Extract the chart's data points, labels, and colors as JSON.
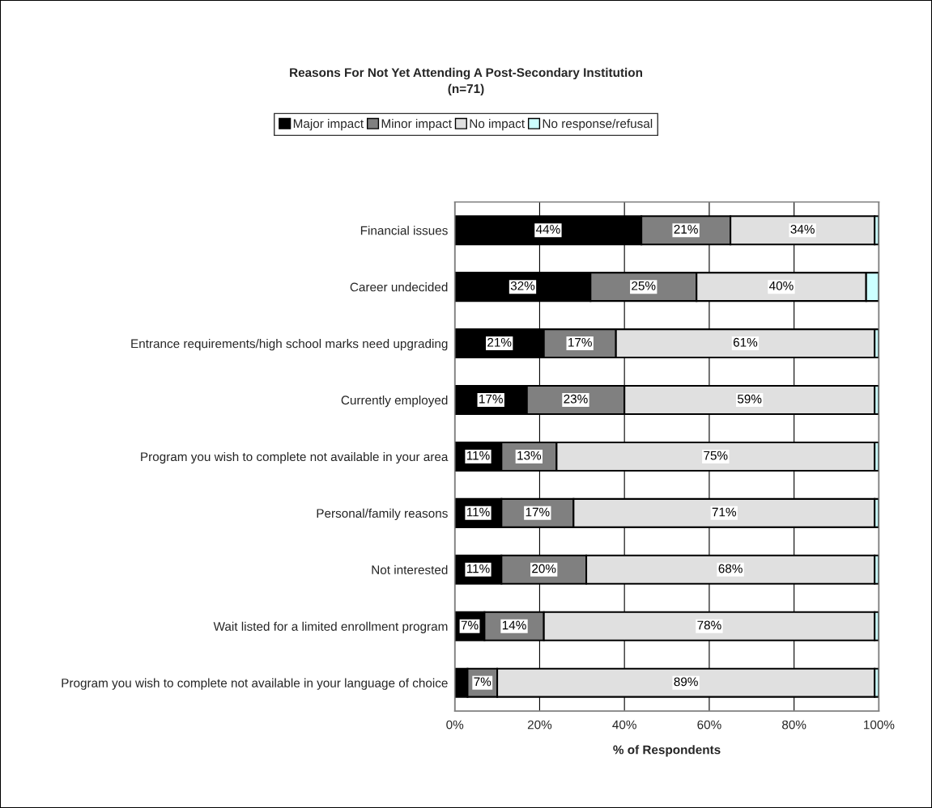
{
  "chart_data": {
    "type": "bar",
    "orientation": "horizontal",
    "stacked": true,
    "title": "Reasons For Not Yet Attending A Post-Secondary Institution",
    "subtitle": "(n=71)",
    "xlabel": "% of Respondents",
    "categories": [
      "Financial issues",
      "Career undecided",
      "Entrance requirements/high school marks need upgrading",
      "Currently employed",
      "Program you wish to complete not available in your area",
      "Personal/family reasons",
      "Not interested",
      "Wait listed for a limited enrollment program",
      "Program you wish to complete not available in your language of choice"
    ],
    "series": [
      {
        "name": "Major impact",
        "color": "#000000",
        "values": [
          44,
          32,
          21,
          17,
          11,
          11,
          11,
          7,
          3
        ],
        "value_labels": [
          "44%",
          "32%",
          "21%",
          "17%",
          "11%",
          "11%",
          "11%",
          "7%",
          null
        ]
      },
      {
        "name": "Minor impact",
        "color": "#808080",
        "values": [
          21,
          25,
          17,
          23,
          13,
          17,
          20,
          14,
          7
        ],
        "value_labels": [
          "21%",
          "25%",
          "17%",
          "23%",
          "13%",
          "17%",
          "20%",
          "14%",
          "7%"
        ]
      },
      {
        "name": "No impact",
        "color": "#e0e0e0",
        "values": [
          34,
          40,
          61,
          59,
          75,
          71,
          68,
          78,
          89
        ],
        "value_labels": [
          "34%",
          "40%",
          "61%",
          "59%",
          "75%",
          "71%",
          "68%",
          "78%",
          "89%"
        ]
      },
      {
        "name": "No response/refusal",
        "color": "#ccffff",
        "values": [
          1,
          3,
          1,
          1,
          1,
          1,
          1,
          1,
          1
        ]
      }
    ],
    "xlim": [
      0,
      100
    ],
    "xticks": [
      {
        "value": 0,
        "label": "0%"
      },
      {
        "value": 20,
        "label": "20%"
      },
      {
        "value": 40,
        "label": "40%"
      },
      {
        "value": 60,
        "label": "60%"
      },
      {
        "value": 80,
        "label": "80%"
      },
      {
        "value": 100,
        "label": "100%"
      }
    ],
    "grid": "x",
    "legend": "top"
  }
}
